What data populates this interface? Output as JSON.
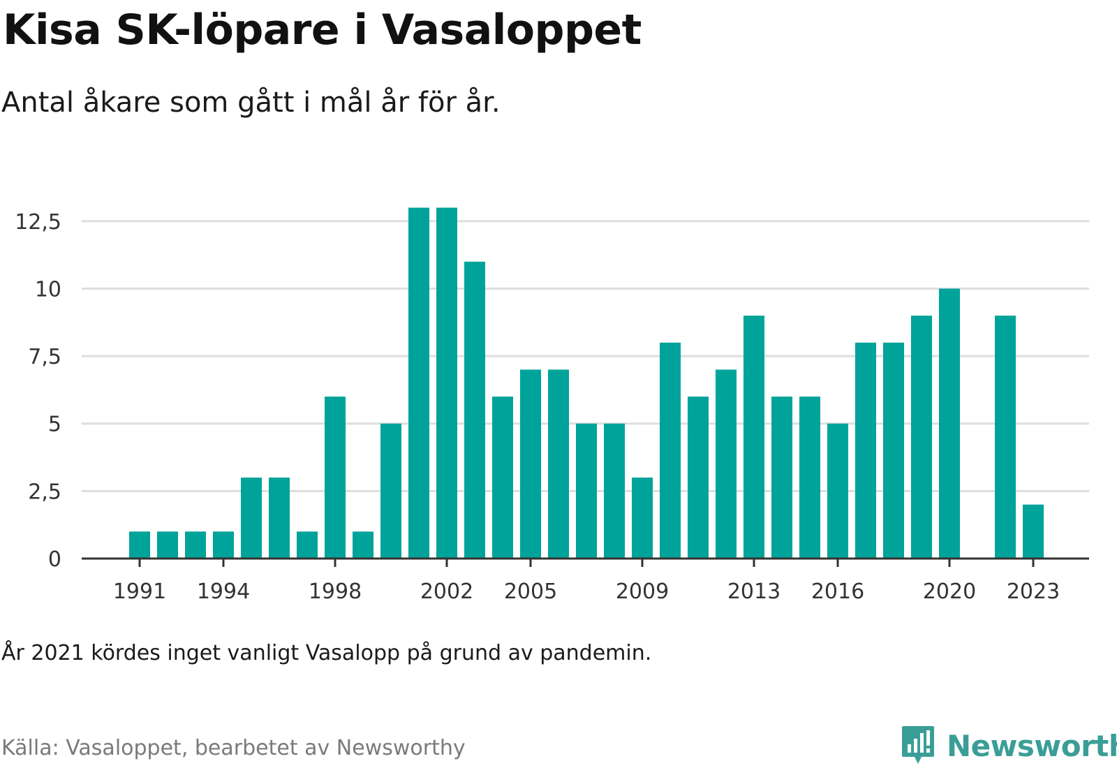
{
  "title": "Kisa SK-löpare i Vasaloppet",
  "subtitle": "Antal åkare som gått i mål år för år.",
  "note": "År 2021 kördes inget vanligt Vasalopp på grund av pandemin.",
  "source": "Källa: Vasaloppet, bearbetet av Newsworthy",
  "brand": "Newsworthy",
  "colors": {
    "bar": "#00a39a",
    "grid": "#dddddd",
    "axis": "#333333",
    "brand": "#3a9e97"
  },
  "icons": {
    "brand_logo": "bar-chart-speech-bubble-icon"
  },
  "chart_data": {
    "type": "bar",
    "x": [
      1991,
      1992,
      1993,
      1994,
      1995,
      1996,
      1997,
      1998,
      1999,
      2000,
      2001,
      2002,
      2003,
      2004,
      2005,
      2006,
      2007,
      2008,
      2009,
      2010,
      2011,
      2012,
      2013,
      2014,
      2015,
      2016,
      2017,
      2018,
      2019,
      2020,
      2021,
      2022,
      2023
    ],
    "values": [
      1,
      1,
      1,
      1,
      3,
      3,
      1,
      6,
      1,
      5,
      13,
      13,
      11,
      6,
      7,
      7,
      5,
      5,
      3,
      8,
      6,
      7,
      9,
      6,
      6,
      5,
      8,
      8,
      9,
      10,
      null,
      9,
      2
    ],
    "x_tick_labels": [
      "1991",
      "1994",
      "1998",
      "2002",
      "2005",
      "2009",
      "2013",
      "2016",
      "2020",
      "2023"
    ],
    "y_ticks": [
      0,
      2.5,
      5,
      7.5,
      10,
      12.5
    ],
    "y_tick_labels": [
      "0",
      "2,5",
      "5",
      "7,5",
      "10",
      "12,5"
    ],
    "ylim": [
      0,
      13.4
    ],
    "grid": true,
    "legend": "none"
  }
}
